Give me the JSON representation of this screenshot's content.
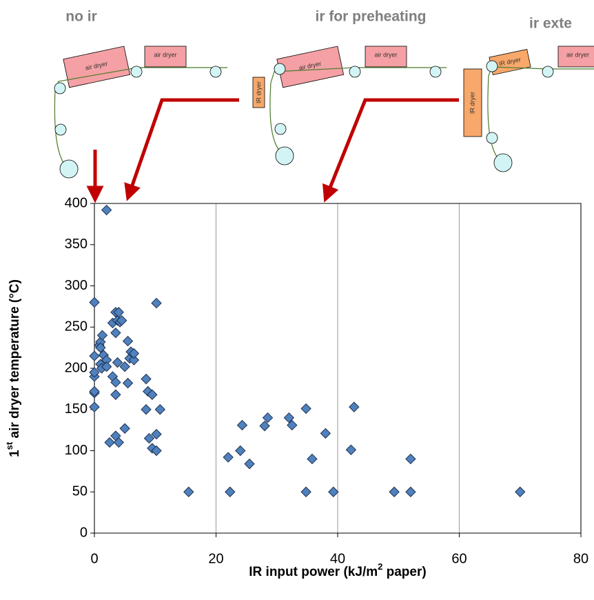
{
  "diagrams": [
    {
      "title": "no ir",
      "labels": [
        "air dryer",
        "air dryer"
      ]
    },
    {
      "title": "ir for preheating",
      "labels": [
        "IR dryer",
        "air dryer",
        "air dryer"
      ]
    },
    {
      "title": "ir exte",
      "labels": [
        "IR dryer",
        "IR dryer",
        "air dryer"
      ]
    }
  ],
  "chart_data": {
    "type": "scatter",
    "xlabel": [
      "IR input power  (kJ/m",
      "2",
      " paper)"
    ],
    "ylabel": [
      "1",
      "st",
      " air dryer temperature  (°C)"
    ],
    "color": "#4f81bd",
    "xlim": [
      0,
      80
    ],
    "xticks": [
      0,
      20,
      40,
      60,
      80
    ],
    "ylim": [
      0,
      400
    ],
    "yticks": [
      0,
      50,
      100,
      150,
      200,
      250,
      300,
      350,
      400
    ],
    "grid": true,
    "x": [
      0,
      0,
      0,
      0,
      0,
      0,
      0,
      0.8,
      1,
      1,
      1,
      1.3,
      1.5,
      1.2,
      2,
      2,
      3,
      3,
      3.5,
      3.5,
      3.8,
      4,
      4.2,
      4.5,
      3.8,
      3.5,
      3.5,
      2.5,
      3.5,
      4,
      5,
      5,
      5.5,
      5.5,
      5.8,
      6,
      6.5,
      6.5,
      2,
      8.5,
      8.8,
      9.5,
      9,
      9.5,
      10.2,
      10.2,
      10.8,
      8.5,
      10.2,
      15.5,
      22,
      22.3,
      24,
      24.3,
      25.5,
      28,
      28.5,
      32,
      32.5,
      34.8,
      34.8,
      35.8,
      38,
      39.3,
      42.2,
      42.7,
      49.3,
      52,
      52,
      70
    ],
    "values": [
      280,
      190,
      195,
      215,
      170,
      172,
      153,
      228,
      232,
      225,
      205,
      240,
      216,
      200,
      210,
      202,
      190,
      255,
      268,
      243,
      258,
      268,
      256,
      258,
      207,
      183,
      168,
      110,
      118,
      110,
      202,
      127,
      233,
      182,
      212,
      220,
      210,
      218,
      392,
      187,
      172,
      168,
      115,
      103,
      120,
      100,
      150,
      150,
      279,
      50,
      92,
      50,
      100,
      131,
      84,
      130,
      140,
      140,
      131,
      151,
      50,
      90,
      121,
      50,
      101,
      153,
      50,
      90,
      50,
      50
    ]
  }
}
